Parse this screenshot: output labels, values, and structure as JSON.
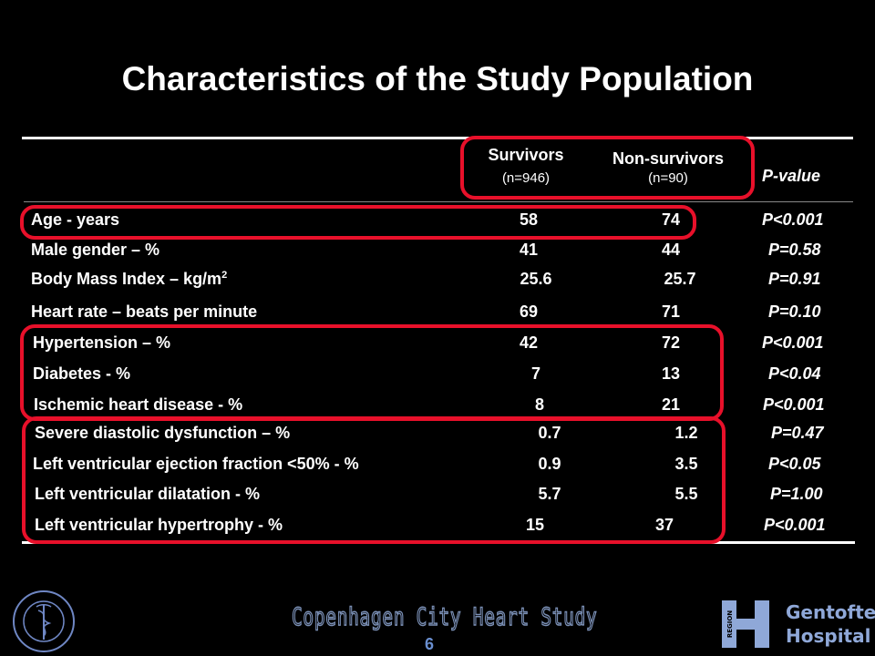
{
  "slide": {
    "title": "Characteristics of the Study Population",
    "page_number": "6"
  },
  "columns": {
    "survivors_label": "Survivors",
    "survivors_n": "(n=946)",
    "nonsurvivors_label": "Non-survivors",
    "nonsurvivors_n": "(n=90)",
    "pvalue_label": "P-value"
  },
  "rows": [
    {
      "label": "Age - years",
      "survivors": "58",
      "nonsurvivors": "74",
      "p": "P<0.001"
    },
    {
      "label": "Male gender – %",
      "survivors": "41",
      "nonsurvivors": "44",
      "p": "P=0.58"
    },
    {
      "label": "Body Mass Index – kg/m",
      "label_sup": "2",
      "survivors": "25.6",
      "nonsurvivors": "25.7",
      "p": "P=0.91"
    },
    {
      "label": "Heart rate – beats per minute",
      "survivors": "69",
      "nonsurvivors": "71",
      "p": "P=0.10"
    },
    {
      "label": "Hypertension – %",
      "survivors": "42",
      "nonsurvivors": "72",
      "p": "P<0.001"
    },
    {
      "label": "Diabetes - %",
      "survivors": "7",
      "nonsurvivors": "13",
      "p": "P<0.04"
    },
    {
      "label": "Ischemic heart disease - %",
      "survivors": "8",
      "nonsurvivors": "21",
      "p": "P<0.001"
    },
    {
      "label": "Severe diastolic dysfunction – %",
      "survivors": "0.7",
      "nonsurvivors": "1.2",
      "p": "P=0.47"
    },
    {
      "label": "Left ventricular ejection fraction <50% - %",
      "survivors": "0.9",
      "nonsurvivors": "3.5",
      "p": "P<0.05"
    },
    {
      "label": "Left ventricular dilatation - %",
      "survivors": "5.7",
      "nonsurvivors": "5.5",
      "p": "P=1.00"
    },
    {
      "label": "Left ventricular hypertrophy - %",
      "survivors": "15",
      "nonsurvivors": "37",
      "p": "P<0.001"
    }
  ],
  "footer": {
    "study_name": "Copenhagen City Heart Study",
    "seal_text": "MEDICAE · SIGILLUM · FACULTATIS",
    "logo_region": "REGION",
    "logo_line1": "Gentofte",
    "logo_line2": "Hospital"
  },
  "colors": {
    "background": "#000000",
    "text": "#ffffff",
    "highlight": "#e8102a",
    "logo": "#8fa8d8"
  }
}
